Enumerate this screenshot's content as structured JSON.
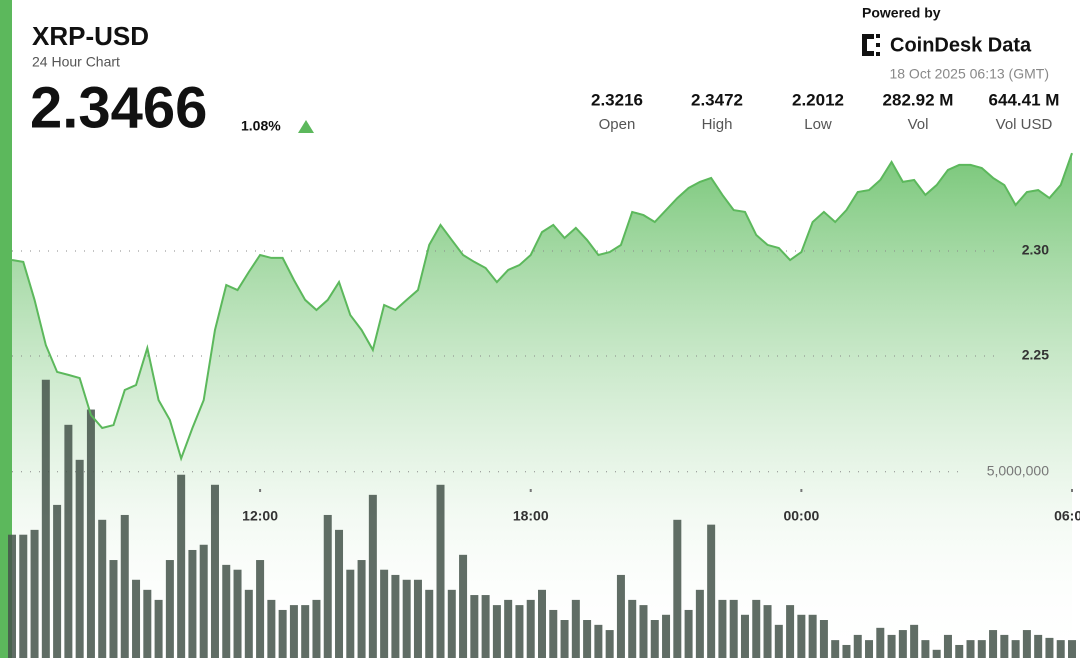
{
  "header": {
    "symbol": "XRP-USD",
    "subtitle": "24 Hour Chart",
    "price": "2.3466",
    "change": "1.08%",
    "powered_by": "Powered by",
    "brand": "CoinDesk Data",
    "timestamp": "18 Oct 2025 06:13 (GMT)"
  },
  "stats": [
    {
      "value": "2.3216",
      "label": "Open"
    },
    {
      "value": "2.3472",
      "label": "High"
    },
    {
      "value": "2.2012",
      "label": "Low"
    },
    {
      "value": "282.92 M",
      "label": "Vol"
    },
    {
      "value": "644.41 M",
      "label": "Vol USD"
    }
  ],
  "chart_data": {
    "type": "line",
    "x": [
      "06:30",
      "06:45",
      "07:00",
      "07:15",
      "07:30",
      "07:45",
      "08:00",
      "08:15",
      "08:30",
      "08:45",
      "09:00",
      "09:15",
      "09:30",
      "09:45",
      "10:00",
      "10:15",
      "10:30",
      "10:45",
      "11:00",
      "11:15",
      "11:30",
      "11:45",
      "12:00",
      "12:15",
      "12:30",
      "12:45",
      "13:00",
      "13:15",
      "13:30",
      "13:45",
      "14:00",
      "14:15",
      "14:30",
      "14:45",
      "15:00",
      "15:15",
      "15:30",
      "15:45",
      "16:00",
      "16:15",
      "16:30",
      "16:45",
      "17:00",
      "17:15",
      "17:30",
      "17:45",
      "18:00",
      "18:15",
      "18:30",
      "18:45",
      "19:00",
      "19:15",
      "19:30",
      "19:45",
      "20:00",
      "20:15",
      "20:30",
      "20:45",
      "21:00",
      "21:15",
      "21:30",
      "21:45",
      "22:00",
      "22:15",
      "22:30",
      "22:45",
      "23:00",
      "23:15",
      "23:30",
      "23:45",
      "00:00",
      "00:15",
      "00:30",
      "00:45",
      "01:00",
      "01:15",
      "01:30",
      "01:45",
      "02:00",
      "02:15",
      "02:30",
      "02:45",
      "03:00",
      "03:15",
      "03:30",
      "03:45",
      "04:00",
      "04:15",
      "04:30",
      "04:45",
      "05:00",
      "05:15",
      "05:30",
      "05:45",
      "06:00"
    ],
    "xticks": [
      "12:00",
      "18:00",
      "00:00",
      "06:00"
    ],
    "series": [
      {
        "color": "#5cb85c",
        "values": [
          2.2957,
          2.2948,
          2.2767,
          2.2552,
          2.2424,
          2.241,
          2.2395,
          2.2219,
          2.2157,
          2.2171,
          2.2338,
          2.2362,
          2.2538,
          2.229,
          2.2195,
          2.2012,
          2.2157,
          2.229,
          2.2624,
          2.2838,
          2.2814,
          2.29,
          2.2981,
          2.2967,
          2.2967,
          2.2862,
          2.2767,
          2.2719,
          2.2767,
          2.2852,
          2.2695,
          2.2624,
          2.2529,
          2.2743,
          2.2719,
          2.2767,
          2.2814,
          2.3029,
          2.3124,
          2.3052,
          2.2981,
          2.2948,
          2.2919,
          2.2852,
          2.291,
          2.2933,
          2.2981,
          2.309,
          2.3124,
          2.3062,
          2.311,
          2.3052,
          2.2981,
          2.2995,
          2.3029,
          2.3186,
          2.3171,
          2.3138,
          2.3195,
          2.3252,
          2.33,
          2.3329,
          2.3348,
          2.3267,
          2.3195,
          2.3186,
          2.3076,
          2.3029,
          2.3014,
          2.2957,
          2.2995,
          2.3138,
          2.3186,
          2.3138,
          2.3195,
          2.3281,
          2.329,
          2.3338,
          2.3424,
          2.3329,
          2.3338,
          2.3267,
          2.3314,
          2.3386,
          2.341,
          2.341,
          2.3395,
          2.3348,
          2.3314,
          2.3219,
          2.3281,
          2.329,
          2.3252,
          2.3314,
          2.3466
        ]
      },
      {
        "type": "bar",
        "axis": "y2",
        "color": "#44534a",
        "values": [
          3310000,
          3310000,
          3440000,
          7470000,
          4110000,
          6260000,
          5320000,
          6670000,
          3710000,
          2630000,
          3840000,
          2100000,
          1830000,
          1560000,
          2630000,
          4920000,
          2900000,
          3040000,
          4650000,
          2500000,
          2370000,
          1830000,
          2630000,
          1560000,
          1290000,
          1420000,
          1420000,
          1560000,
          3840000,
          3440000,
          2370000,
          2630000,
          4380000,
          2370000,
          2230000,
          2100000,
          2100000,
          1830000,
          4650000,
          1830000,
          2770000,
          1690000,
          1690000,
          1420000,
          1560000,
          1420000,
          1560000,
          1830000,
          1290000,
          1020000,
          1560000,
          1020000,
          890000,
          750000,
          2230000,
          1560000,
          1420000,
          1020000,
          1160000,
          3710000,
          1290000,
          1830000,
          3580000,
          1560000,
          1560000,
          1160000,
          1560000,
          1420000,
          890000,
          1420000,
          1160000,
          1160000,
          1020000,
          480000,
          350000,
          620000,
          480000,
          810000,
          620000,
          750000,
          890000,
          480000,
          220000,
          620000,
          350000,
          480000,
          480000,
          750000,
          620000,
          480000,
          750000,
          620000,
          540000,
          480000,
          480000
        ]
      }
    ],
    "ylim": [
      2.11,
      2.35
    ],
    "yticks": [
      {
        "value": 2.25,
        "label": "2.25"
      },
      {
        "value": 2.3,
        "label": "2.30"
      }
    ],
    "y2lim": [
      0,
      8000000
    ],
    "y2ticks": [
      {
        "value": 5000000,
        "label": "5,000,000"
      }
    ],
    "grid": true
  }
}
